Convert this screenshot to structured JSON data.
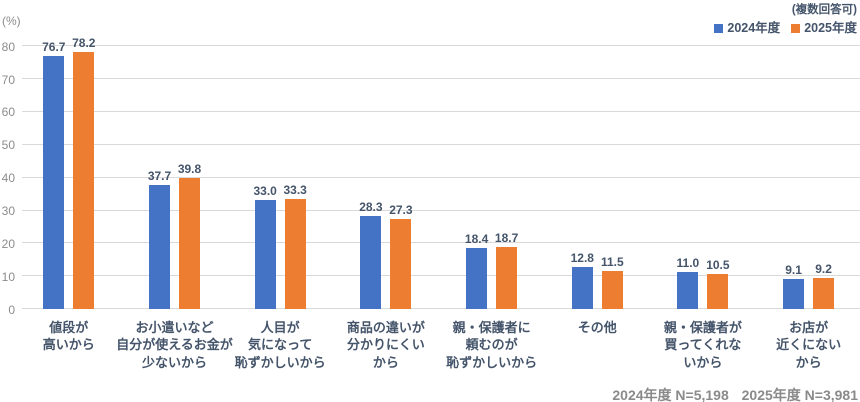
{
  "annotation": "(複数回答可)",
  "unit_label": "(%)",
  "legend": [
    {
      "label": "2024年度",
      "color": "#4472c4"
    },
    {
      "label": "2025年度",
      "color": "#ed7d31"
    }
  ],
  "footnote": {
    "n_2024": "2024年度 N=5,198",
    "n_2025": "2025年度 N=3,981"
  },
  "chart_data": {
    "type": "bar",
    "title": "",
    "xlabel": "",
    "ylabel": "(%)",
    "ylim": [
      0,
      80
    ],
    "ytick_step": 10,
    "grid": true,
    "legend_position": "top-right",
    "categories": [
      "値段が\n高いから",
      "お小遣いなど\n自分が使えるお金が\n少ないから",
      "人目が\n気になって\n恥ずかしいから",
      "商品の違いが\n分かりにくい\nから",
      "親・保護者に\n頼むのが\n恥ずかしいから",
      "その他",
      "親・保護者が\n買ってくれな\nいから",
      "お店が\n近くにない\nから"
    ],
    "series": [
      {
        "name": "2024年度",
        "color": "#4472c4",
        "values": [
          76.7,
          37.7,
          33.0,
          28.3,
          18.4,
          12.8,
          11.0,
          9.1
        ]
      },
      {
        "name": "2025年度",
        "color": "#ed7d31",
        "values": [
          78.2,
          39.8,
          33.3,
          27.3,
          18.7,
          11.5,
          10.5,
          9.2
        ]
      }
    ]
  }
}
